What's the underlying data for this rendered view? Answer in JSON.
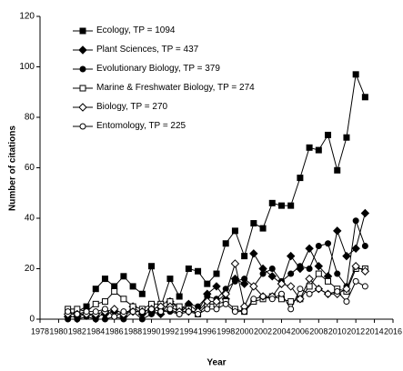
{
  "chart_data": {
    "type": "line",
    "x_label": "Year",
    "y_label": "Number of citations",
    "x": [
      1981,
      1982,
      1983,
      1984,
      1985,
      1986,
      1987,
      1988,
      1989,
      1990,
      1991,
      1992,
      1993,
      1994,
      1995,
      1996,
      1997,
      1998,
      1999,
      2000,
      2001,
      2002,
      2003,
      2004,
      2005,
      2006,
      2007,
      2008,
      2009,
      2010,
      2011,
      2012,
      2013
    ],
    "xlim": [
      1978,
      2016
    ],
    "xticks": [
      1978,
      1980,
      1982,
      1984,
      1986,
      1988,
      1990,
      1992,
      1994,
      1996,
      1998,
      2000,
      2002,
      2004,
      2006,
      2008,
      2010,
      2012,
      2014,
      2016
    ],
    "ylim": [
      0,
      120
    ],
    "yticks": [
      0,
      20,
      40,
      60,
      80,
      100,
      120
    ],
    "series": [
      {
        "name": "Ecology, TP = 1094",
        "color": "#000000",
        "marker": "square-filled",
        "values": [
          2,
          3,
          5,
          12,
          16,
          13,
          17,
          13,
          10,
          21,
          5,
          16,
          9,
          20,
          19,
          14,
          18,
          30,
          35,
          25,
          38,
          36,
          46,
          45,
          45,
          56,
          68,
          67,
          73,
          59,
          72,
          97,
          88
        ]
      },
      {
        "name": "Plant Sciences, TP = 437",
        "color": "#000000",
        "marker": "diamond-filled",
        "values": [
          1,
          1,
          2,
          1,
          2,
          3,
          1,
          5,
          2,
          3,
          2,
          7,
          4,
          6,
          3,
          10,
          13,
          8,
          16,
          14,
          26,
          20,
          17,
          14,
          25,
          20,
          28,
          21,
          17,
          35,
          25,
          28,
          42
        ]
      },
      {
        "name": "Evolutionary Biology, TP = 379",
        "color": "#000000",
        "marker": "circle-filled",
        "values": [
          0,
          0,
          1,
          0,
          0,
          1,
          0,
          3,
          0,
          2,
          3,
          3,
          2,
          6,
          5,
          9,
          8,
          12,
          15,
          16,
          13,
          18,
          20,
          15,
          18,
          21,
          20,
          29,
          30,
          18,
          13,
          39,
          29
        ]
      },
      {
        "name": "Marine & Freshwater Biology, TP = 274",
        "color": "#000000",
        "marker": "square-open",
        "values": [
          4,
          4,
          3,
          6,
          7,
          11,
          8,
          5,
          4,
          6,
          6,
          7,
          5,
          4,
          2,
          6,
          6,
          7,
          4,
          3,
          7,
          8,
          9,
          8,
          7,
          8,
          13,
          18,
          15,
          12,
          11,
          20,
          20
        ]
      },
      {
        "name": "Biology, TP = 270",
        "color": "#000000",
        "marker": "diamond-open",
        "values": [
          2,
          2,
          2,
          2,
          3,
          4,
          2,
          3,
          3,
          4,
          5,
          5,
          3,
          3,
          3,
          7,
          7,
          10,
          22,
          5,
          13,
          9,
          9,
          14,
          13,
          8,
          16,
          12,
          10,
          10,
          12,
          21,
          19
        ]
      },
      {
        "name": "Entomology, TP = 225",
        "color": "#000000",
        "marker": "circle-open",
        "values": [
          3,
          2,
          3,
          3,
          4,
          1,
          3,
          3,
          3,
          4,
          3,
          4,
          2,
          3,
          2,
          4,
          4,
          6,
          3,
          3,
          8,
          9,
          8,
          10,
          4,
          12,
          10,
          12,
          10,
          11,
          7,
          15,
          13
        ]
      }
    ]
  }
}
